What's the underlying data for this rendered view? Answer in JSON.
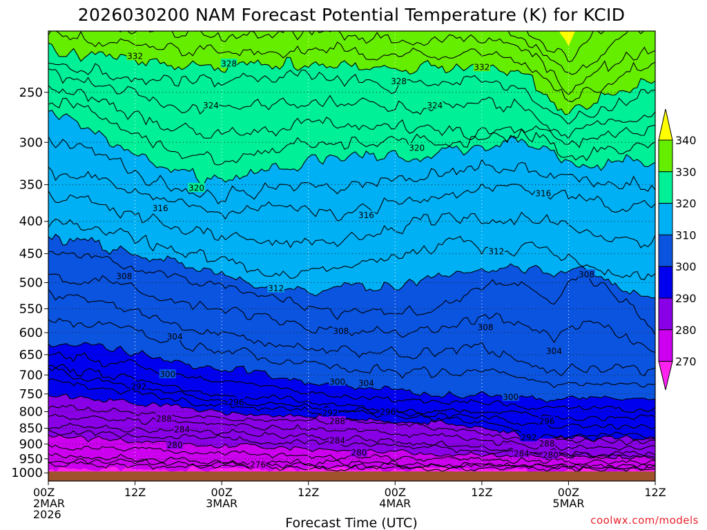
{
  "chart_data": {
    "type": "heatmap",
    "title": "2026030200 NAM Forecast Potential Temperature (K) for KCID",
    "xlabel": "Forecast Time (UTC)",
    "ylabel": "",
    "credit": "coolwx.com/models",
    "xlim_hours": [
      0,
      84
    ],
    "ylim_hpa": [
      1030,
      200
    ],
    "y_ticks": [
      250,
      300,
      350,
      400,
      450,
      500,
      550,
      600,
      650,
      700,
      750,
      800,
      850,
      900,
      950,
      1000
    ],
    "x_ticks": [
      {
        "hour": 0,
        "lines": [
          "00Z",
          "2MAR",
          "2026"
        ]
      },
      {
        "hour": 12,
        "lines": [
          "12Z"
        ]
      },
      {
        "hour": 24,
        "lines": [
          "00Z",
          "3MAR"
        ]
      },
      {
        "hour": 36,
        "lines": [
          "12Z"
        ]
      },
      {
        "hour": 48,
        "lines": [
          "00Z",
          "4MAR"
        ]
      },
      {
        "hour": 60,
        "lines": [
          "12Z"
        ]
      },
      {
        "hour": 72,
        "lines": [
          "00Z",
          "5MAR"
        ]
      },
      {
        "hour": 84,
        "lines": [
          "12Z"
        ]
      }
    ],
    "surface_pressure_hpa": 995,
    "colorbar": {
      "bounds": [
        270,
        280,
        290,
        300,
        310,
        320,
        330,
        340
      ],
      "colors": [
        "#ff22ee",
        "#cc00ee",
        "#8a00e6",
        "#0000ee",
        "#0a54e0",
        "#00b0f4",
        "#00f098",
        "#66ee00",
        "#ffff00"
      ],
      "labels": [
        "270",
        "280",
        "290",
        "300",
        "310",
        "320",
        "330",
        "340"
      ]
    },
    "contour_interval_k": 2,
    "contour_labels": [
      {
        "text": "332",
        "hour": 12.0,
        "pres": 219
      },
      {
        "text": "328",
        "hour": 25.0,
        "pres": 225
      },
      {
        "text": "328",
        "hour": 48.5,
        "pres": 240
      },
      {
        "text": "332",
        "hour": 60.0,
        "pres": 228
      },
      {
        "text": "324",
        "hour": 22.5,
        "pres": 262
      },
      {
        "text": "324",
        "hour": 53.5,
        "pres": 262
      },
      {
        "text": "320",
        "hour": 51.0,
        "pres": 306
      },
      {
        "text": "320",
        "hour": 20.5,
        "pres": 354
      },
      {
        "text": "316",
        "hour": 15.5,
        "pres": 381
      },
      {
        "text": "316",
        "hour": 44.0,
        "pres": 391
      },
      {
        "text": "316",
        "hour": 68.5,
        "pres": 361
      },
      {
        "text": "312",
        "hour": 62.0,
        "pres": 446
      },
      {
        "text": "312",
        "hour": 31.5,
        "pres": 510
      },
      {
        "text": "308",
        "hour": 10.5,
        "pres": 488
      },
      {
        "text": "308",
        "hour": 74.5,
        "pres": 485
      },
      {
        "text": "308",
        "hour": 40.5,
        "pres": 596
      },
      {
        "text": "308",
        "hour": 60.5,
        "pres": 588
      },
      {
        "text": "304",
        "hour": 17.5,
        "pres": 608
      },
      {
        "text": "304",
        "hour": 70.0,
        "pres": 641
      },
      {
        "text": "304",
        "hour": 44.0,
        "pres": 721
      },
      {
        "text": "300",
        "hour": 16.5,
        "pres": 698
      },
      {
        "text": "300",
        "hour": 40.0,
        "pres": 717
      },
      {
        "text": "300",
        "hour": 64.0,
        "pres": 758
      },
      {
        "text": "296",
        "hour": 26.0,
        "pres": 772
      },
      {
        "text": "296",
        "hour": 47.0,
        "pres": 800
      },
      {
        "text": "296",
        "hour": 69.0,
        "pres": 828
      },
      {
        "text": "292",
        "hour": 12.5,
        "pres": 730
      },
      {
        "text": "292",
        "hour": 39.0,
        "pres": 803
      },
      {
        "text": "292",
        "hour": 66.5,
        "pres": 878
      },
      {
        "text": "288",
        "hour": 16.0,
        "pres": 820
      },
      {
        "text": "288",
        "hour": 40.0,
        "pres": 828
      },
      {
        "text": "288",
        "hour": 69.0,
        "pres": 898
      },
      {
        "text": "284",
        "hour": 18.5,
        "pres": 853
      },
      {
        "text": "284",
        "hour": 40.0,
        "pres": 888
      },
      {
        "text": "284",
        "hour": 65.5,
        "pres": 931
      },
      {
        "text": "280",
        "hour": 17.5,
        "pres": 903
      },
      {
        "text": "280",
        "hour": 43.0,
        "pres": 928
      },
      {
        "text": "280",
        "hour": 69.5,
        "pres": 936
      },
      {
        "text": "276",
        "hour": 29.0,
        "pres": 970
      }
    ]
  }
}
